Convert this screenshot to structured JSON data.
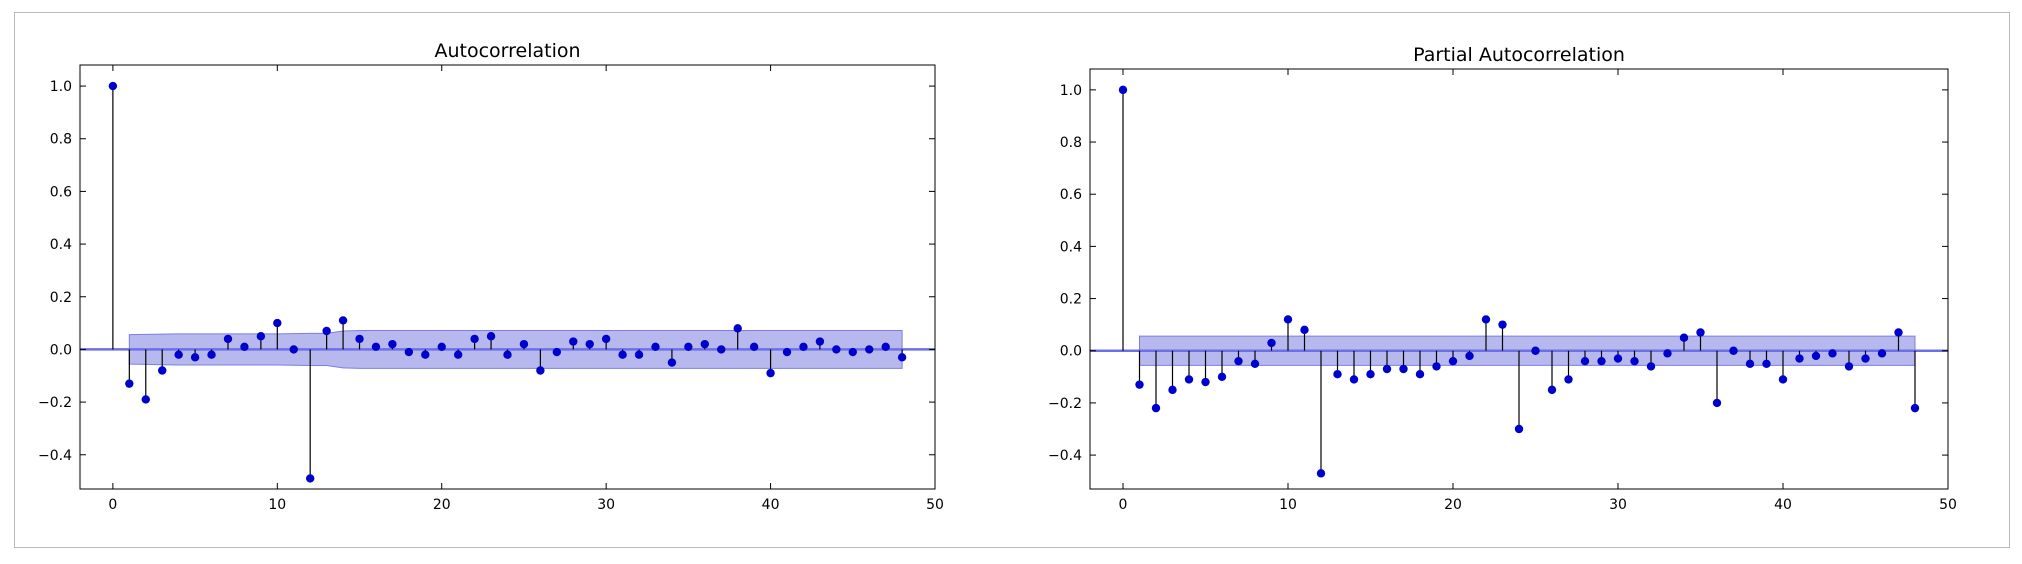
{
  "chart_data": [
    {
      "type": "stem",
      "title": "Autocorrelation",
      "xlabel": "",
      "ylabel": "",
      "xlim": [
        -2,
        50
      ],
      "ylim": [
        -0.53,
        1.08
      ],
      "xticks": [
        "0",
        "10",
        "20",
        "30",
        "40",
        "50"
      ],
      "yticks": [
        "1.0",
        "0.8",
        "0.6",
        "0.4",
        "0.2",
        "0.0",
        "−0.2",
        "−0.4"
      ],
      "lags": [
        0,
        1,
        2,
        3,
        4,
        5,
        6,
        7,
        8,
        9,
        10,
        11,
        12,
        13,
        14,
        15,
        16,
        17,
        18,
        19,
        20,
        21,
        22,
        23,
        24,
        25,
        26,
        27,
        28,
        29,
        30,
        31,
        32,
        33,
        34,
        35,
        36,
        37,
        38,
        39,
        40,
        41,
        42,
        43,
        44,
        45,
        46,
        47,
        48
      ],
      "values": [
        1.0,
        -0.13,
        -0.19,
        -0.08,
        -0.02,
        -0.03,
        -0.02,
        0.04,
        0.01,
        0.05,
        0.1,
        0.0,
        -0.49,
        0.07,
        0.11,
        0.04,
        0.01,
        0.02,
        -0.01,
        -0.02,
        0.01,
        -0.02,
        0.04,
        0.05,
        -0.02,
        0.02,
        -0.08,
        -0.01,
        0.03,
        0.02,
        0.04,
        -0.02,
        -0.02,
        0.01,
        -0.05,
        0.01,
        0.02,
        0.0,
        0.08,
        0.01,
        -0.09,
        -0.01,
        0.01,
        0.03,
        0.0,
        -0.01,
        0.0,
        0.01,
        -0.03
      ],
      "confidence_band": [
        0.056,
        0.057,
        0.058,
        0.059,
        0.059,
        0.059,
        0.059,
        0.059,
        0.059,
        0.059,
        0.06,
        0.061,
        0.061,
        0.07,
        0.072,
        0.072,
        0.072,
        0.072,
        0.072,
        0.072,
        0.072,
        0.072,
        0.072,
        0.072,
        0.072,
        0.072,
        0.072,
        0.072,
        0.072,
        0.072,
        0.072,
        0.072,
        0.072,
        0.072,
        0.072,
        0.072,
        0.072,
        0.072,
        0.072,
        0.072,
        0.072,
        0.072,
        0.072,
        0.072,
        0.072,
        0.072,
        0.072,
        0.072
      ],
      "colors": {
        "marker": "#0000cc",
        "stem": "#000000",
        "band": "#7b7ee0",
        "zero_line": "#6c70e6"
      }
    },
    {
      "type": "stem",
      "title": "Partial Autocorrelation",
      "xlabel": "",
      "ylabel": "",
      "xlim": [
        -2,
        50
      ],
      "ylim": [
        -0.53,
        1.08
      ],
      "xticks": [
        "0",
        "10",
        "20",
        "30",
        "40",
        "50"
      ],
      "yticks": [
        "1.0",
        "0.8",
        "0.6",
        "0.4",
        "0.2",
        "0.0",
        "−0.2",
        "−0.4"
      ],
      "lags": [
        0,
        1,
        2,
        3,
        4,
        5,
        6,
        7,
        8,
        9,
        10,
        11,
        12,
        13,
        14,
        15,
        16,
        17,
        18,
        19,
        20,
        21,
        22,
        23,
        24,
        25,
        26,
        27,
        28,
        29,
        30,
        31,
        32,
        33,
        34,
        35,
        36,
        37,
        38,
        39,
        40,
        41,
        42,
        43,
        44,
        45,
        46,
        47,
        48
      ],
      "values": [
        1.0,
        -0.13,
        -0.22,
        -0.15,
        -0.11,
        -0.12,
        -0.1,
        -0.04,
        -0.05,
        0.03,
        0.12,
        0.08,
        -0.47,
        -0.09,
        -0.11,
        -0.09,
        -0.07,
        -0.07,
        -0.09,
        -0.06,
        -0.04,
        -0.02,
        0.12,
        0.1,
        -0.3,
        0.0,
        -0.15,
        -0.11,
        -0.04,
        -0.04,
        -0.03,
        -0.04,
        -0.06,
        -0.01,
        0.05,
        0.07,
        -0.2,
        0.0,
        -0.05,
        -0.05,
        -0.11,
        -0.03,
        -0.02,
        -0.01,
        -0.06,
        -0.03,
        -0.01,
        0.07,
        -0.22
      ],
      "confidence_band": [
        0.056,
        0.056,
        0.056,
        0.056,
        0.056,
        0.056,
        0.056,
        0.056,
        0.056,
        0.056,
        0.056,
        0.056,
        0.056,
        0.056,
        0.056,
        0.056,
        0.056,
        0.056,
        0.056,
        0.056,
        0.056,
        0.056,
        0.056,
        0.056,
        0.056,
        0.056,
        0.056,
        0.056,
        0.056,
        0.056,
        0.056,
        0.056,
        0.056,
        0.056,
        0.056,
        0.056,
        0.056,
        0.056,
        0.056,
        0.056,
        0.056,
        0.056,
        0.056,
        0.056,
        0.056,
        0.056,
        0.056,
        0.056
      ],
      "colors": {
        "marker": "#0000cc",
        "stem": "#000000",
        "band": "#7b7ee0",
        "zero_line": "#6c70e6"
      }
    }
  ]
}
